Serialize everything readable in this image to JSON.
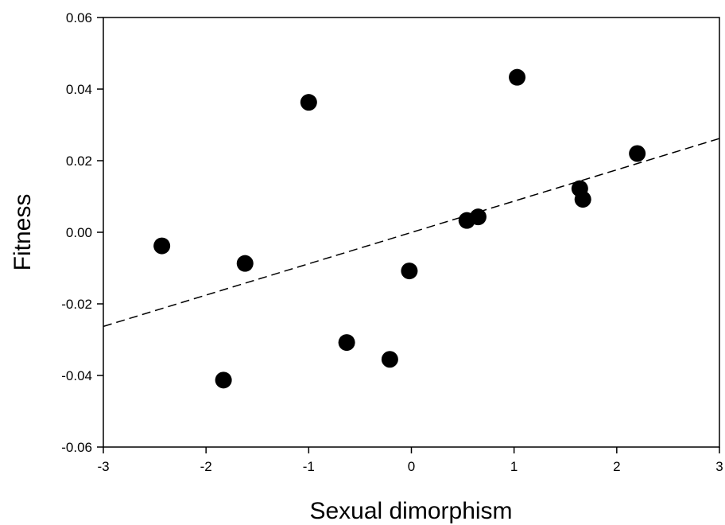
{
  "chart_data": {
    "type": "scatter",
    "title": "",
    "xlabel": "Sexual dimorphism",
    "ylabel": "Fitness",
    "xlim": [
      -3,
      3
    ],
    "ylim": [
      -0.06,
      0.06
    ],
    "xticks": [
      "-3",
      "-2",
      "-1",
      "0",
      "1",
      "2",
      "3"
    ],
    "yticks": [
      "0.06",
      "0.04",
      "0.02",
      "0.00",
      "-0.02",
      "-0.04",
      "-0.06"
    ],
    "grid": false,
    "legend": "none",
    "marker_color": "#000000",
    "points": [
      {
        "x": -2.43,
        "y": -0.0038
      },
      {
        "x": -1.83,
        "y": -0.0413
      },
      {
        "x": -1.62,
        "y": -0.0087
      },
      {
        "x": -1.0,
        "y": 0.0363
      },
      {
        "x": -0.63,
        "y": -0.0308
      },
      {
        "x": -0.21,
        "y": -0.0355
      },
      {
        "x": -0.02,
        "y": -0.0108
      },
      {
        "x": 0.54,
        "y": 0.0033
      },
      {
        "x": 0.65,
        "y": 0.0043
      },
      {
        "x": 1.03,
        "y": 0.0433
      },
      {
        "x": 1.64,
        "y": 0.0122
      },
      {
        "x": 1.67,
        "y": 0.0092
      },
      {
        "x": 2.2,
        "y": 0.022
      }
    ],
    "trendline": {
      "style": "dashed",
      "from": {
        "x": -3,
        "y": -0.0263
      },
      "to": {
        "x": 3,
        "y": 0.0262
      }
    }
  }
}
